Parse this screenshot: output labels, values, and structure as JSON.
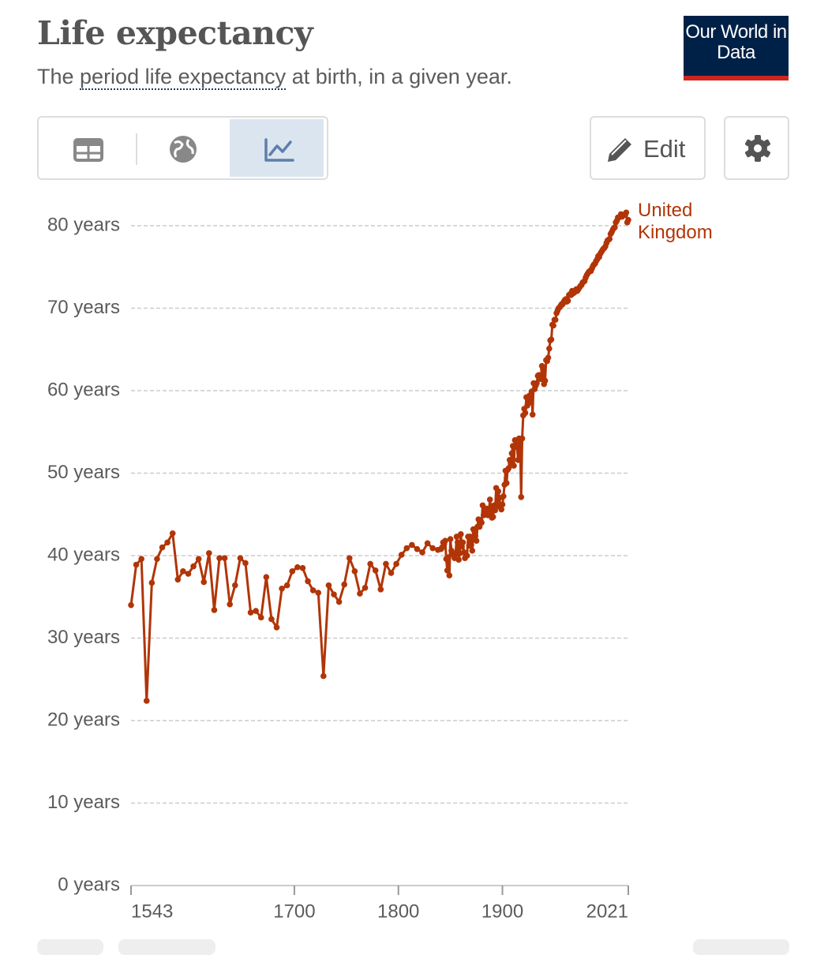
{
  "chart_data": {
    "type": "line",
    "title": "Life expectancy",
    "subtitle": [
      "The ",
      "period life expectancy",
      " at birth, in a given year."
    ],
    "logo": "Our World in Data",
    "edit_button": "Edit",
    "xlim": [
      1543,
      2021
    ],
    "xticks": [
      1543,
      1700,
      1800,
      1900,
      2021
    ],
    "ylim": [
      0,
      80
    ],
    "yticks": [
      {
        "value": 0,
        "label": "0 years"
      },
      {
        "value": 10,
        "label": "10 years"
      },
      {
        "value": 20,
        "label": "20 years"
      },
      {
        "value": 30,
        "label": "30 years"
      },
      {
        "value": 40,
        "label": "40 years"
      },
      {
        "value": 50,
        "label": "50 years"
      },
      {
        "value": 60,
        "label": "60 years"
      },
      {
        "value": 70,
        "label": "70 years"
      },
      {
        "value": 80,
        "label": "80 years"
      }
    ],
    "grid": true,
    "x": [
      1543,
      1548,
      1553,
      1558,
      1563,
      1568,
      1573,
      1578,
      1583,
      1588,
      1593,
      1598,
      1603,
      1608,
      1613,
      1618,
      1623,
      1628,
      1633,
      1638,
      1643,
      1648,
      1653,
      1658,
      1663,
      1668,
      1673,
      1678,
      1683,
      1688,
      1693,
      1698,
      1703,
      1708,
      1713,
      1718,
      1723,
      1728,
      1733,
      1738,
      1743,
      1748,
      1753,
      1758,
      1763,
      1768,
      1773,
      1778,
      1783,
      1788,
      1793,
      1798,
      1803,
      1808,
      1813,
      1818,
      1823,
      1828,
      1833,
      1838,
      1841,
      1842,
      1843,
      1844,
      1845,
      1846,
      1847,
      1848,
      1849,
      1850,
      1851,
      1852,
      1853,
      1854,
      1855,
      1856,
      1857,
      1858,
      1859,
      1860,
      1861,
      1862,
      1863,
      1864,
      1865,
      1866,
      1867,
      1868,
      1869,
      1870,
      1871,
      1872,
      1873,
      1874,
      1875,
      1876,
      1877,
      1878,
      1879,
      1880,
      1881,
      1882,
      1883,
      1884,
      1885,
      1886,
      1887,
      1888,
      1889,
      1890,
      1891,
      1892,
      1893,
      1894,
      1895,
      1896,
      1897,
      1898,
      1899,
      1900,
      1901,
      1902,
      1903,
      1904,
      1905,
      1906,
      1907,
      1908,
      1909,
      1910,
      1911,
      1912,
      1913,
      1914,
      1915,
      1916,
      1917,
      1918,
      1919,
      1920,
      1921,
      1922,
      1923,
      1924,
      1925,
      1926,
      1927,
      1928,
      1929,
      1930,
      1931,
      1932,
      1933,
      1934,
      1935,
      1936,
      1937,
      1938,
      1939,
      1940,
      1941,
      1942,
      1943,
      1944,
      1945,
      1946,
      1947,
      1948,
      1949,
      1950,
      1951,
      1952,
      1953,
      1954,
      1955,
      1956,
      1957,
      1958,
      1959,
      1960,
      1961,
      1962,
      1963,
      1964,
      1965,
      1966,
      1967,
      1968,
      1969,
      1970,
      1971,
      1972,
      1973,
      1974,
      1975,
      1976,
      1977,
      1978,
      1979,
      1980,
      1981,
      1982,
      1983,
      1984,
      1985,
      1986,
      1987,
      1988,
      1989,
      1990,
      1991,
      1992,
      1993,
      1994,
      1995,
      1996,
      1997,
      1998,
      1999,
      2000,
      2001,
      2002,
      2003,
      2004,
      2005,
      2006,
      2007,
      2008,
      2009,
      2010,
      2011,
      2012,
      2013,
      2014,
      2015,
      2016,
      2017,
      2018,
      2019,
      2020,
      2021
    ],
    "series": [
      {
        "name": "United Kingdom",
        "color": "#b13507",
        "values": [
          34.0,
          38.9,
          39.6,
          22.4,
          36.7,
          39.6,
          41.0,
          41.6,
          42.7,
          37.1,
          38.1,
          37.8,
          38.7,
          39.6,
          36.8,
          40.3,
          33.4,
          39.7,
          39.7,
          34.1,
          36.4,
          39.7,
          39.1,
          33.1,
          33.3,
          32.5,
          37.4,
          32.3,
          31.3,
          36.0,
          36.4,
          38.1,
          38.6,
          38.5,
          36.9,
          35.8,
          35.5,
          25.4,
          36.4,
          35.3,
          34.4,
          36.5,
          39.7,
          38.1,
          35.4,
          36.1,
          39.0,
          38.2,
          35.9,
          39.0,
          37.9,
          39.0,
          40.1,
          40.9,
          41.3,
          40.8,
          40.4,
          41.5,
          40.9,
          40.7,
          40.8,
          41.0,
          41.6,
          41.4,
          41.8,
          39.6,
          38.2,
          39.8,
          37.6,
          42.0,
          40.6,
          40.3,
          40.1,
          39.7,
          40.2,
          42.3,
          41.6,
          39.5,
          40.3,
          42.6,
          41.1,
          41.6,
          40.4,
          39.7,
          40.0,
          40.0,
          42.3,
          41.2,
          42.3,
          41.3,
          40.6,
          43.2,
          43.0,
          42.4,
          41.8,
          43.5,
          44.4,
          43.5,
          44.3,
          44.0,
          46.1,
          44.9,
          45.1,
          45.0,
          45.7,
          44.9,
          45.3,
          46.8,
          45.8,
          44.6,
          44.7,
          46.1,
          45.5,
          48.2,
          46.0,
          47.8,
          47.0,
          46.1,
          45.6,
          46.2,
          47.2,
          48.6,
          50.3,
          48.8,
          50.4,
          50.6,
          51.6,
          51.2,
          52.4,
          53.3,
          50.9,
          54.0,
          53.2,
          53.4,
          51.6,
          54.2,
          53.9,
          47.1,
          54.2,
          57.0,
          57.8,
          57.3,
          59.2,
          58.2,
          58.9,
          59.4,
          58.6,
          59.9,
          57.1,
          60.9,
          60.2,
          60.6,
          60.9,
          61.8,
          61.9,
          61.7,
          61.4,
          63.0,
          62.6,
          60.8,
          61.2,
          63.7,
          63.6,
          64.0,
          65.1,
          66.1,
          66.2,
          68.0,
          67.9,
          68.6,
          68.6,
          69.4,
          69.7,
          70.0,
          70.1,
          70.3,
          70.5,
          70.5,
          70.8,
          71.0,
          71.1,
          70.8,
          70.9,
          71.6,
          71.7,
          71.6,
          72.1,
          71.8,
          71.9,
          72.0,
          72.3,
          72.1,
          72.3,
          72.5,
          72.7,
          72.8,
          73.1,
          73.2,
          73.3,
          73.7,
          74.0,
          74.2,
          74.4,
          74.5,
          74.5,
          74.8,
          75.1,
          75.3,
          75.4,
          75.7,
          75.9,
          76.3,
          76.2,
          76.6,
          76.8,
          77.0,
          77.2,
          77.3,
          77.5,
          77.9,
          78.2,
          78.3,
          78.4,
          79.0,
          79.2,
          79.5,
          79.7,
          79.8,
          80.4,
          80.6,
          81.0,
          81.0,
          81.1,
          81.4,
          81.1,
          81.3,
          81.3,
          81.3,
          81.6,
          80.4,
          80.7
        ]
      }
    ]
  }
}
